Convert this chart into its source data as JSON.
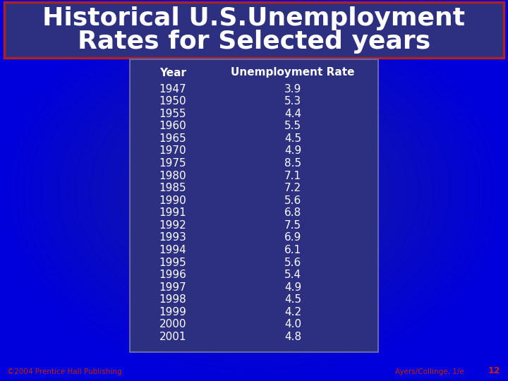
{
  "title_line1": "Historical U.S.Unemployment",
  "title_line2": "Rates for Selected years",
  "outer_bg_color": "#0000cc",
  "table_bg_color": "#2d3080",
  "table_border_color": "#6666aa",
  "title_bg_color": "#2d3080",
  "title_border_color": "#aa2222",
  "title_color": "#ffffff",
  "header_color": "#ffffff",
  "data_color": "#ffffff",
  "footer_color": "#cc2200",
  "footer_left": "©2004 Prentice Hall Publishing",
  "footer_right": "Ayers/Collinge, 1/e",
  "footer_page": "12",
  "col_header_year": "Year",
  "col_header_rate": "Unemployment Rate",
  "years": [
    1947,
    1950,
    1955,
    1960,
    1965,
    1970,
    1975,
    1980,
    1985,
    1990,
    1991,
    1992,
    1993,
    1994,
    1995,
    1996,
    1997,
    1998,
    1999,
    2000,
    2001
  ],
  "rates": [
    "3.9",
    "5.3",
    "4.4",
    "5.5",
    "4.5",
    "4.9",
    "8.5",
    "7.1",
    "7.2",
    "5.6",
    "6.8",
    "7.5",
    "6.9",
    "6.1",
    "5.6",
    "5.4",
    "4.9",
    "4.5",
    "4.2",
    "4.0",
    "4.8"
  ],
  "fig_width": 7.2,
  "fig_height": 5.4,
  "dpi": 100
}
